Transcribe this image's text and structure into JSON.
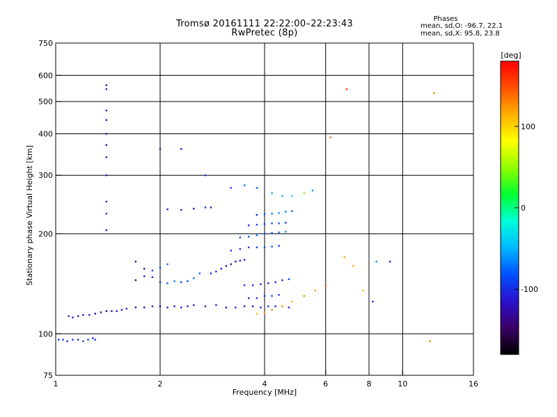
{
  "title_line1": "Tromsø 20161111 22:22:00–22:23:43",
  "title_line2": "RwPretec (8p)",
  "phases": {
    "title": "Phases",
    "o_line": "mean, sd,O: -96.7, 22.1",
    "x_line": "mean, sd,X:  95.8, 23.8"
  },
  "chart_data": {
    "type": "scatter",
    "xlabel": "Frequency [MHz]",
    "ylabel": "Stationary phase Virtual Height [km]",
    "xscale": "log",
    "yscale": "log",
    "xlim": [
      1,
      16
    ],
    "ylim": [
      75,
      750
    ],
    "x_ticks": [
      1,
      2,
      4,
      6,
      8,
      10,
      16
    ],
    "x_tick_labels": [
      "1",
      "2",
      "4",
      "6",
      "8",
      "10",
      "16"
    ],
    "y_ticks": [
      75,
      100,
      200,
      300,
      400,
      500,
      600,
      750
    ],
    "y_tick_labels": [
      "75",
      "100",
      "200",
      "300",
      "400",
      "500",
      "600",
      "750"
    ],
    "grid": true,
    "grid_x": [
      2,
      4,
      6,
      8,
      10
    ],
    "grid_y": [
      100,
      200,
      300,
      400,
      500,
      600
    ],
    "colorbar": {
      "label": "[deg]",
      "range": [
        -180,
        180
      ],
      "ticks": [
        100,
        0,
        -100
      ],
      "tick_labels": [
        "100",
        "0",
        "-100"
      ],
      "colors": [
        "#000000",
        "#3a0066",
        "#2a10cc",
        "#0050ff",
        "#00b8ff",
        "#00ffd8",
        "#00ff30",
        "#90ff00",
        "#ffff00",
        "#ffb000",
        "#ff5000",
        "#ff0000"
      ]
    },
    "series": [
      {
        "x": [
          1.02,
          1.05,
          1.08,
          1.12,
          1.16,
          1.2,
          1.24,
          1.28,
          1.3,
          1.09,
          1.12,
          1.16,
          1.2,
          1.25,
          1.3,
          1.35,
          1.4,
          1.45,
          1.5,
          1.55,
          1.6,
          1.7,
          1.8,
          1.9,
          2.0,
          2.1,
          2.2,
          2.3,
          2.4,
          2.5,
          2.7,
          2.9,
          3.1,
          3.3,
          3.5,
          3.7,
          3.9,
          4.1,
          4.3,
          4.5,
          4.7,
          2.1,
          2.3,
          2.5,
          2.7,
          2.8,
          1.7,
          1.8,
          1.9,
          2.0,
          2.1,
          1.7,
          1.8,
          1.9,
          2.0,
          2.1,
          2.2,
          2.3,
          2.4,
          2.5,
          2.6,
          2.8,
          2.9,
          3.0,
          3.1,
          3.2,
          3.3,
          3.4,
          3.5,
          3.2,
          3.4,
          3.6,
          3.8,
          4.0,
          4.2,
          4.4,
          3.4,
          3.6,
          3.8,
          4.0,
          4.2,
          4.4,
          4.6,
          3.6,
          3.8,
          4.0,
          4.2,
          4.4,
          4.6,
          3.8,
          4.0,
          4.2,
          4.4,
          4.6,
          4.8,
          3.5,
          3.7,
          3.9,
          4.1,
          4.3,
          4.5,
          4.7,
          3.6,
          3.8,
          4.0,
          4.2,
          4.4,
          3.8,
          4.0,
          4.2,
          4.5,
          4.8,
          5.2,
          5.6,
          6.0,
          1.4,
          1.4,
          1.4,
          1.4,
          1.4,
          1.4,
          1.4,
          1.4,
          1.4,
          1.4,
          1.4,
          2.0,
          2.3,
          2.7,
          3.2,
          3.5,
          3.8,
          4.2,
          4.5,
          4.8,
          5.2,
          5.5,
          7.7,
          8.2,
          7.2,
          8.4,
          9.2,
          6.2,
          6.8,
          12.3,
          12.0,
          6.9
        ],
        "y": [
          96,
          96,
          95,
          96,
          96,
          95,
          96,
          97,
          96,
          113,
          112,
          113,
          114,
          114,
          115,
          116,
          117,
          117,
          117,
          118,
          119,
          120,
          120,
          121,
          121,
          120,
          121,
          120,
          121,
          122,
          121,
          122,
          120,
          120,
          121,
          121,
          120,
          121,
          121,
          121,
          120,
          237,
          236,
          238,
          240,
          240,
          145,
          149,
          155,
          158,
          162,
          165,
          157,
          148,
          143,
          142,
          144,
          143,
          144,
          147,
          152,
          152,
          154,
          157,
          160,
          162,
          165,
          166,
          167,
          178,
          180,
          182,
          182,
          182,
          183,
          184,
          195,
          196,
          198,
          200,
          201,
          202,
          203,
          212,
          213,
          214,
          215,
          215,
          216,
          228,
          229,
          230,
          231,
          233,
          234,
          140,
          140,
          141,
          142,
          143,
          145,
          146,
          128,
          128,
          130,
          130,
          131,
          115,
          116,
          118,
          121,
          125,
          130,
          135,
          140,
          560,
          545,
          470,
          440,
          400,
          370,
          340,
          300,
          250,
          230,
          205,
          360,
          360,
          300,
          275,
          280,
          275,
          265,
          260,
          260,
          265,
          270,
          135,
          125,
          160,
          165,
          165,
          390,
          170,
          530,
          95,
          545
        ],
        "phase": [
          -100,
          -95,
          -100,
          -105,
          -100,
          -95,
          -100,
          -100,
          -95,
          -110,
          -115,
          -120,
          -125,
          -120,
          -130,
          -125,
          -135,
          -120,
          -110,
          -120,
          -115,
          -120,
          -130,
          -115,
          -120,
          -110,
          -115,
          -120,
          -110,
          -115,
          -120,
          -110,
          -115,
          -100,
          -110,
          -120,
          -105,
          -100,
          -110,
          -105,
          -100,
          -115,
          -110,
          -120,
          -105,
          -110,
          -120,
          -110,
          -90,
          -80,
          -75,
          -120,
          -130,
          -100,
          -95,
          -80,
          -70,
          -85,
          -80,
          -70,
          -75,
          -95,
          -100,
          -110,
          -115,
          -120,
          -125,
          -115,
          -110,
          -100,
          -95,
          -90,
          -85,
          -80,
          -90,
          -95,
          -90,
          -80,
          -75,
          -80,
          -85,
          -70,
          -60,
          -100,
          -95,
          -90,
          -80,
          -85,
          -90,
          -100,
          -80,
          -70,
          -60,
          -70,
          -80,
          -95,
          -100,
          -110,
          -120,
          -105,
          -100,
          -90,
          -110,
          -100,
          -95,
          -90,
          -100,
          110,
          120,
          130,
          120,
          110,
          130,
          125,
          140,
          -120,
          -110,
          -110,
          -120,
          -115,
          -110,
          -120,
          -110,
          -100,
          -95,
          -110,
          -110,
          -100,
          -100,
          -90,
          -70,
          -80,
          -60,
          -50,
          -40,
          40,
          -60,
          110,
          -100,
          120,
          -60,
          -100,
          140,
          120,
          130,
          130,
          160
        ]
      }
    ]
  }
}
